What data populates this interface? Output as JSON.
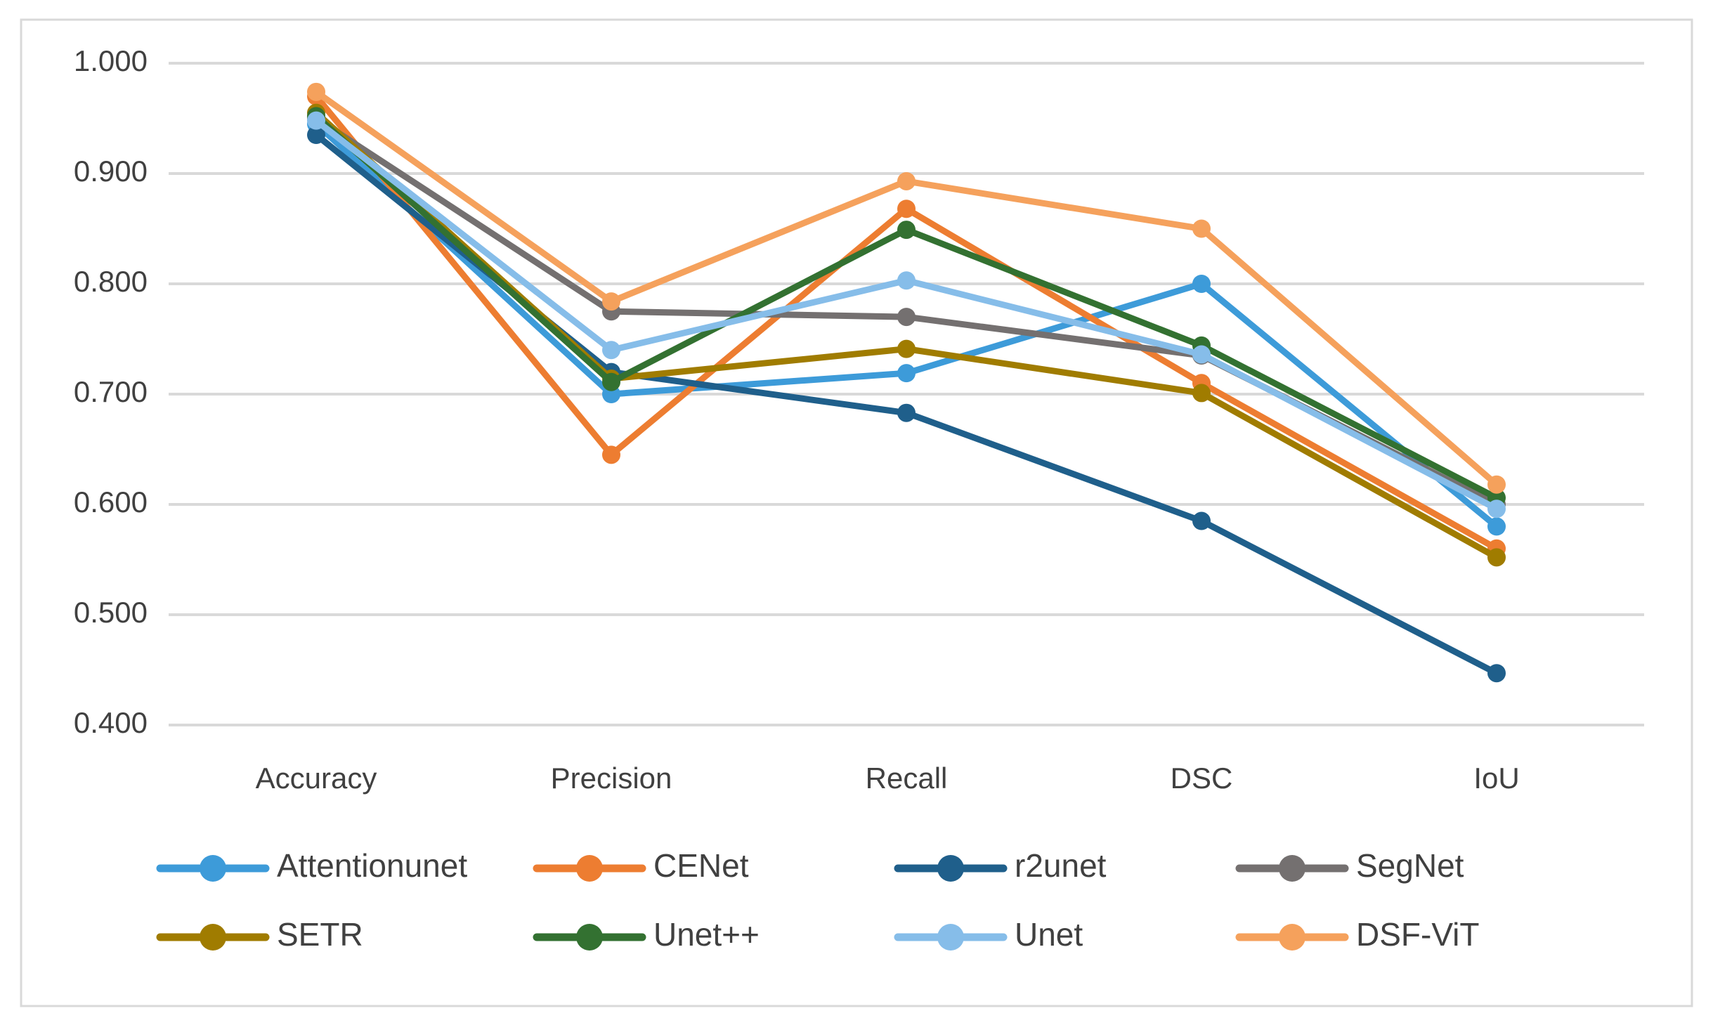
{
  "chart_data": {
    "type": "line",
    "title": "",
    "categories": [
      "Accuracy",
      "Precision",
      "Recall",
      "DSC",
      "IoU"
    ],
    "series": [
      {
        "name": "Attentionunet",
        "color": "#3D9BD9",
        "values": [
          0.945,
          0.7,
          0.719,
          0.8,
          0.58
        ]
      },
      {
        "name": "CENet",
        "color": "#ED7D31",
        "values": [
          0.97,
          0.645,
          0.868,
          0.71,
          0.56
        ]
      },
      {
        "name": "r2unet",
        "color": "#1F5F8B",
        "values": [
          0.935,
          0.72,
          0.683,
          0.585,
          0.447
        ]
      },
      {
        "name": "SegNet",
        "color": "#747070",
        "values": [
          0.95,
          0.775,
          0.77,
          0.735,
          0.6
        ]
      },
      {
        "name": "SETR",
        "color": "#A07C00",
        "values": [
          0.955,
          0.714,
          0.741,
          0.701,
          0.552
        ]
      },
      {
        "name": "Unet++",
        "color": "#337131",
        "values": [
          0.952,
          0.711,
          0.849,
          0.744,
          0.606
        ]
      },
      {
        "name": "Unet",
        "color": "#86BDE9",
        "values": [
          0.948,
          0.74,
          0.803,
          0.736,
          0.596
        ]
      },
      {
        "name": "DSF-ViT",
        "color": "#F5A15C",
        "values": [
          0.974,
          0.784,
          0.893,
          0.85,
          0.618
        ]
      }
    ],
    "y_axis": {
      "min": 0.4,
      "max": 1.0,
      "step": 0.1,
      "tick_labels": [
        "1.000",
        "0.900",
        "0.800",
        "0.700",
        "0.600",
        "0.500",
        "0.400"
      ]
    },
    "x_axis": {
      "label": ""
    },
    "legend": {
      "position": "bottom",
      "rows": [
        [
          "Attentionunet",
          "CENet",
          "r2unet",
          "SegNet"
        ],
        [
          "SETR",
          "Unet++",
          "Unet",
          "DSF-ViT"
        ]
      ]
    },
    "grid": true,
    "marker": "circle",
    "colors": {
      "gridline": "#D9D9D9",
      "chart_border": "#D9D9D9",
      "text": "#404040",
      "background": "#FFFFFF"
    }
  }
}
